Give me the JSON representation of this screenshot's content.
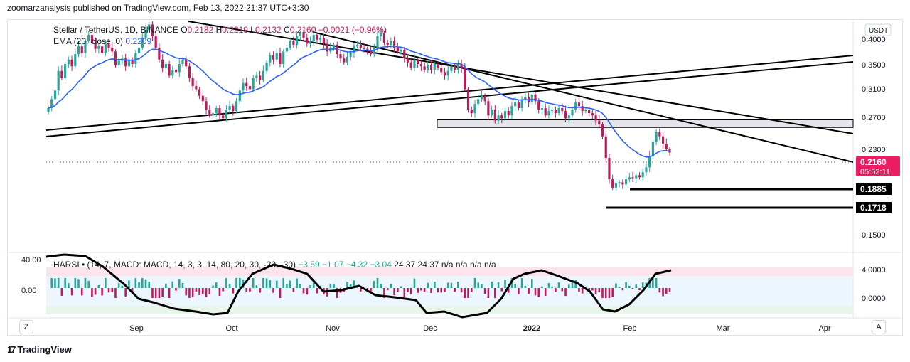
{
  "header": {
    "publish_line": "zoomarzanalysis published on TradingView.com, Feb 13, 2022 21:37 UTC+3:30"
  },
  "legend": {
    "symbol": "Stellar / TetherUS, 1D, BINANCE",
    "ohlc": [
      {
        "label": "O",
        "value": "0.2182"
      },
      {
        "label": "H",
        "value": "0.2219"
      },
      {
        "label": "L",
        "value": "0.2132"
      },
      {
        "label": "C",
        "value": "0.2160"
      }
    ],
    "change": "−0.0021 (−0.96%)",
    "ema_label": "EMA (20, close, 0)",
    "ema_value": "0.2209"
  },
  "currency_badge": "USDT",
  "footer": {
    "brand": "TradingView",
    "logo": "tradingview-logo-icon"
  },
  "buttons": {
    "z": "Z",
    "a": "A"
  },
  "colors": {
    "up": "#26a69a",
    "down": "#c2185b",
    "ema": "#2962ff",
    "price_tag": "#e91e63",
    "level_tag": "#000000",
    "grid": "#f0f3fa"
  },
  "chart_data": {
    "type": "candlestick",
    "symbol": "XLM/USDT",
    "timeframe": "1D",
    "x_ticks": [
      "Sep",
      "Oct",
      "Nov",
      "Dec",
      "2022",
      "Feb",
      "Mar",
      "Apr"
    ],
    "y_ticks": [
      "0.4000",
      "0.3500",
      "0.3100",
      "0.2700",
      "0.2300",
      "0.1500"
    ],
    "y_scale": "log",
    "y_range": [
      0.13,
      0.43
    ],
    "current_price": "0.2160",
    "countdown": "05:52:11",
    "levels": [
      {
        "price": 0.1885,
        "label": "0.1885"
      },
      {
        "price": 0.1718,
        "label": "0.1718"
      }
    ],
    "resistance_zone": [
      0.246,
      0.256
    ],
    "candles_close": [
      0.272,
      0.285,
      0.298,
      0.33,
      0.318,
      0.342,
      0.35,
      0.338,
      0.36,
      0.375,
      0.362,
      0.385,
      0.398,
      0.382,
      0.37,
      0.375,
      0.362,
      0.38,
      0.372,
      0.365,
      0.34,
      0.348,
      0.352,
      0.338,
      0.35,
      0.342,
      0.362,
      0.372,
      0.392,
      0.408,
      0.42,
      0.395,
      0.372,
      0.35,
      0.335,
      0.342,
      0.322,
      0.332,
      0.328,
      0.342,
      0.35,
      0.338,
      0.318,
      0.305,
      0.3,
      0.29,
      0.282,
      0.27,
      0.262,
      0.265,
      0.272,
      0.262,
      0.258,
      0.27,
      0.275,
      0.268,
      0.282,
      0.298,
      0.31,
      0.305,
      0.3,
      0.318,
      0.322,
      0.315,
      0.33,
      0.345,
      0.358,
      0.35,
      0.362,
      0.342,
      0.365,
      0.372,
      0.385,
      0.378,
      0.395,
      0.402,
      0.392,
      0.38,
      0.385,
      0.398,
      0.388,
      0.392,
      0.38,
      0.365,
      0.372,
      0.378,
      0.36,
      0.352,
      0.345,
      0.355,
      0.362,
      0.375,
      0.378,
      0.372,
      0.37,
      0.368,
      0.36,
      0.372,
      0.395,
      0.402,
      0.382,
      0.378,
      0.385,
      0.372,
      0.365,
      0.368,
      0.352,
      0.345,
      0.335,
      0.35,
      0.342,
      0.338,
      0.332,
      0.34,
      0.332,
      0.342,
      0.335,
      0.328,
      0.322,
      0.33,
      0.338,
      0.332,
      0.342,
      0.335,
      0.3,
      0.27,
      0.265,
      0.278,
      0.285,
      0.29,
      0.282,
      0.262,
      0.27,
      0.255,
      0.262,
      0.258,
      0.268,
      0.262,
      0.275,
      0.28,
      0.272,
      0.285,
      0.288,
      0.28,
      0.292,
      0.282,
      0.27,
      0.272,
      0.262,
      0.268,
      0.27,
      0.265,
      0.272,
      0.268,
      0.258,
      0.262,
      0.27,
      0.28,
      0.275,
      0.268,
      0.27,
      0.265,
      0.262,
      0.255,
      0.25,
      0.235,
      0.21,
      0.188,
      0.18,
      0.184,
      0.185,
      0.183,
      0.188,
      0.19,
      0.189,
      0.192,
      0.19,
      0.195,
      0.2,
      0.212,
      0.228,
      0.24,
      0.235,
      0.226,
      0.22,
      0.216
    ],
    "indicator": {
      "name": "HARSI",
      "params": "(14, 7, MACD: MACD, 14, 3, 3, 14, 80, 20, 30, -20, -30)",
      "values": [
        "−3.59",
        "−1.07",
        "−4.32",
        "−3.04",
        "24.37",
        "24.37",
        "n/a",
        "n/a",
        "n/a",
        "n/a"
      ],
      "left_ticks": [
        "40.00",
        "0.00"
      ],
      "right_ticks": [
        "4.0000",
        "0.0000"
      ]
    }
  }
}
